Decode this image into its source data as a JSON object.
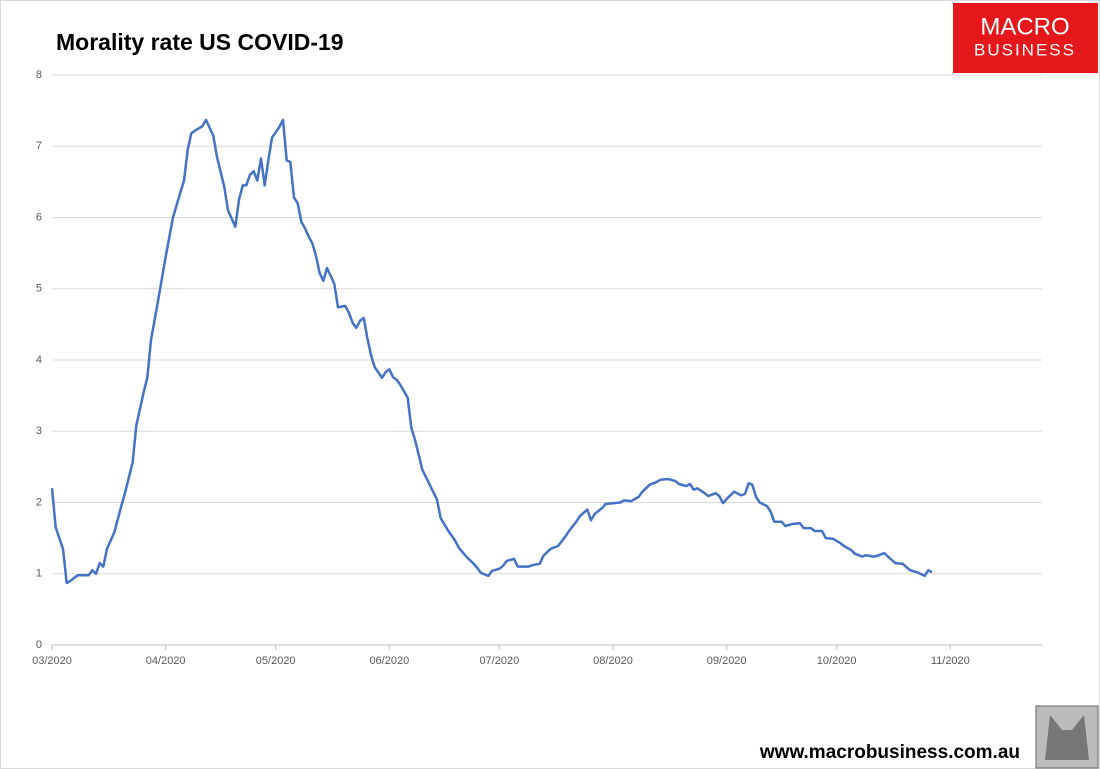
{
  "chart_data": {
    "type": "line",
    "title": "Morality rate US COVID-19",
    "color": "#4472c4",
    "x": [
      0,
      1,
      2,
      3,
      4,
      5,
      7,
      10,
      11,
      12,
      13,
      14,
      15,
      17,
      19,
      20,
      22,
      23,
      25,
      26,
      27,
      29,
      31,
      33,
      34,
      36,
      37,
      38,
      39,
      41,
      42,
      44,
      45,
      47,
      48,
      50,
      51,
      52,
      53,
      54,
      55,
      56,
      57,
      58,
      59,
      60,
      62,
      63,
      64,
      65,
      66,
      67,
      68,
      69,
      70,
      71,
      72,
      73,
      74,
      75,
      76,
      77,
      78,
      80,
      81,
      82,
      83,
      84,
      85,
      86,
      87,
      88,
      90,
      91,
      92,
      93,
      94,
      95,
      97,
      98,
      99,
      100,
      101,
      103,
      105,
      106,
      108,
      110,
      111,
      113,
      115,
      116,
      117,
      119,
      120,
      122,
      123,
      124,
      126,
      127,
      130,
      131,
      133,
      134,
      136,
      138,
      140,
      141,
      143,
      144,
      146,
      147,
      148,
      150,
      151,
      153,
      155,
      156,
      158,
      160,
      161,
      163,
      165,
      166,
      168,
      170,
      171,
      173,
      174,
      175,
      176,
      178,
      179,
      181,
      182,
      183,
      184,
      186,
      188,
      189,
      190,
      191,
      192,
      193,
      195,
      196,
      197,
      199,
      200,
      202,
      204,
      205,
      207,
      208,
      210,
      211,
      213,
      215,
      216,
      218,
      219,
      221,
      222,
      224,
      225,
      227,
      228,
      230,
      232,
      234,
      236,
      238,
      239,
      240
    ],
    "values": [
      2.2,
      1.65,
      1.5,
      1.35,
      0.87,
      0.9,
      0.98,
      0.98,
      1.05,
      1.0,
      1.15,
      1.1,
      1.35,
      1.58,
      1.97,
      2.15,
      2.57,
      3.08,
      3.55,
      3.75,
      4.28,
      4.85,
      5.45,
      6.0,
      6.18,
      6.52,
      6.95,
      7.18,
      7.22,
      7.28,
      7.37,
      7.15,
      6.85,
      6.43,
      6.1,
      5.87,
      6.25,
      6.45,
      6.45,
      6.6,
      6.65,
      6.52,
      6.83,
      6.45,
      6.8,
      7.12,
      7.27,
      7.37,
      6.8,
      6.78,
      6.28,
      6.2,
      5.94,
      5.85,
      5.73,
      5.64,
      5.46,
      5.22,
      5.11,
      5.29,
      5.18,
      5.07,
      4.74,
      4.76,
      4.66,
      4.52,
      4.45,
      4.55,
      4.59,
      4.31,
      4.07,
      3.9,
      3.75,
      3.83,
      3.87,
      3.76,
      3.72,
      3.65,
      3.47,
      3.05,
      2.88,
      2.67,
      2.46,
      2.25,
      2.04,
      1.78,
      1.61,
      1.46,
      1.36,
      1.24,
      1.14,
      1.08,
      1.01,
      0.97,
      1.04,
      1.07,
      1.11,
      1.18,
      1.21,
      1.1,
      1.1,
      1.12,
      1.14,
      1.25,
      1.35,
      1.39,
      1.52,
      1.6,
      1.73,
      1.81,
      1.9,
      1.75,
      1.84,
      1.92,
      1.98,
      1.99,
      2.0,
      2.03,
      2.02,
      2.08,
      2.15,
      2.25,
      2.29,
      2.32,
      2.33,
      2.3,
      2.26,
      2.23,
      2.26,
      2.18,
      2.2,
      2.13,
      2.09,
      2.13,
      2.09,
      1.99,
      2.05,
      2.15,
      2.1,
      2.12,
      2.27,
      2.25,
      2.08,
      2.0,
      1.95,
      1.87,
      1.73,
      1.73,
      1.67,
      1.7,
      1.71,
      1.64,
      1.64,
      1.6,
      1.6,
      1.5,
      1.49,
      1.43,
      1.39,
      1.33,
      1.28,
      1.24,
      1.26,
      1.24,
      1.25,
      1.29,
      1.24,
      1.15,
      1.14,
      1.05,
      1.02,
      0.97,
      1.05,
      1.02
    ],
    "xlim": [
      0,
      270
    ],
    "xticks": [
      {
        "value": 0,
        "label": "03/2020"
      },
      {
        "value": 31,
        "label": "04/2020"
      },
      {
        "value": 61,
        "label": "05/2020"
      },
      {
        "value": 92,
        "label": "06/2020"
      },
      {
        "value": 122,
        "label": "07/2020"
      },
      {
        "value": 153,
        "label": "08/2020"
      },
      {
        "value": 184,
        "label": "09/2020"
      },
      {
        "value": 214,
        "label": "10/2020"
      },
      {
        "value": 245,
        "label": "11/2020"
      }
    ],
    "ylim": [
      0,
      8
    ],
    "yticks": [
      0,
      1,
      2,
      3,
      4,
      5,
      6,
      7,
      8
    ],
    "grid": true
  },
  "logo": {
    "line1": "MACRO",
    "line2": "BUSINESS"
  },
  "footer": "www.macrobusiness.com.au"
}
